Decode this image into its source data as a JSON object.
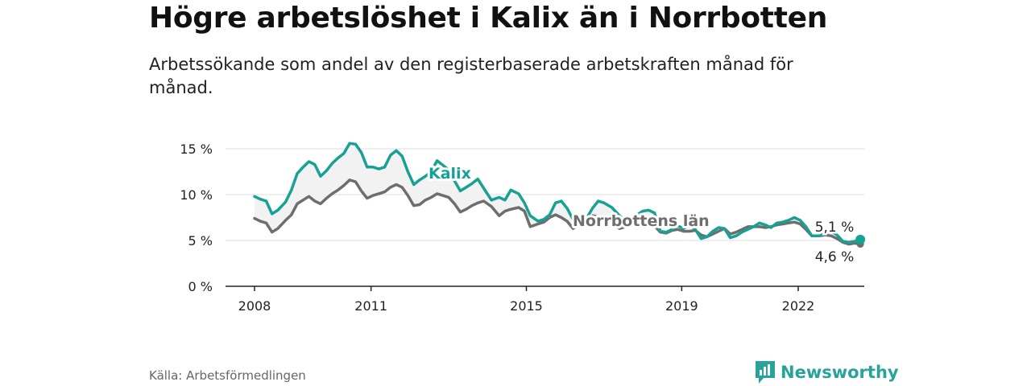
{
  "title": "Högre arbetslöshet i Kalix än i Norrbotten",
  "subtitle": "Arbetssökande som andel av den registerbaserade arbetskraften månad för månad.",
  "source": "Källa: Arbetsförmedlingen",
  "brand": {
    "name": "Newsworthy",
    "icon": "newsworthy-logo-icon"
  },
  "colors": {
    "kalix": "#17a195",
    "norrbotten": "#6e6e6e",
    "band": "#f2f2f2",
    "grid": "#dddddd",
    "axis": "#222222"
  },
  "chart_data": {
    "type": "line",
    "title": "Högre arbetslöshet i Kalix än i Norrbotten",
    "xlabel": "",
    "ylabel": "",
    "xlim": [
      2008,
      2023.8
    ],
    "ylim": [
      0,
      17
    ],
    "y_ticks": [
      0,
      5,
      10,
      15
    ],
    "y_tick_labels": [
      "0 %",
      "5 %",
      "10 %",
      "15 %"
    ],
    "x_ticks": [
      2008,
      2011,
      2015,
      2019,
      2022
    ],
    "x_tick_labels": [
      "2008",
      "2011",
      "2015",
      "2019",
      "2022"
    ],
    "grid": true,
    "series": [
      {
        "name": "Kalix",
        "label": "Kalix",
        "points": [
          [
            2008.0,
            9.8
          ],
          [
            2008.15,
            9.5
          ],
          [
            2008.3,
            9.3
          ],
          [
            2008.45,
            7.9
          ],
          [
            2008.6,
            8.3
          ],
          [
            2008.8,
            9.2
          ],
          [
            2008.95,
            10.5
          ],
          [
            2009.1,
            12.3
          ],
          [
            2009.25,
            13.0
          ],
          [
            2009.4,
            13.6
          ],
          [
            2009.55,
            13.3
          ],
          [
            2009.7,
            12.0
          ],
          [
            2009.85,
            12.6
          ],
          [
            2010.0,
            13.4
          ],
          [
            2010.15,
            14.0
          ],
          [
            2010.3,
            14.5
          ],
          [
            2010.45,
            15.6
          ],
          [
            2010.6,
            15.5
          ],
          [
            2010.75,
            14.6
          ],
          [
            2010.9,
            13.0
          ],
          [
            2011.05,
            13.0
          ],
          [
            2011.2,
            12.8
          ],
          [
            2011.35,
            13.0
          ],
          [
            2011.5,
            14.3
          ],
          [
            2011.65,
            14.8
          ],
          [
            2011.8,
            14.2
          ],
          [
            2011.95,
            12.5
          ],
          [
            2012.1,
            11.1
          ],
          [
            2012.25,
            11.6
          ],
          [
            2012.4,
            12.0
          ],
          [
            2012.55,
            12.5
          ],
          [
            2012.7,
            13.7
          ],
          [
            2012.85,
            13.2
          ],
          [
            2013.0,
            12.7
          ],
          [
            2013.15,
            11.5
          ],
          [
            2013.3,
            10.4
          ],
          [
            2013.45,
            10.8
          ],
          [
            2013.6,
            11.2
          ],
          [
            2013.75,
            11.7
          ],
          [
            2013.9,
            10.7
          ],
          [
            2014.1,
            9.4
          ],
          [
            2014.3,
            9.7
          ],
          [
            2014.45,
            9.4
          ],
          [
            2014.6,
            10.5
          ],
          [
            2014.8,
            10.1
          ],
          [
            2014.95,
            9.1
          ],
          [
            2015.1,
            7.7
          ],
          [
            2015.3,
            7.1
          ],
          [
            2015.45,
            7.3
          ],
          [
            2015.6,
            7.8
          ],
          [
            2015.75,
            9.1
          ],
          [
            2015.9,
            9.3
          ],
          [
            2016.05,
            8.5
          ],
          [
            2016.2,
            7.3
          ],
          [
            2016.35,
            7.2
          ],
          [
            2016.55,
            7.4
          ],
          [
            2016.7,
            8.5
          ],
          [
            2016.85,
            9.3
          ],
          [
            2017.0,
            9.1
          ],
          [
            2017.2,
            8.6
          ],
          [
            2017.4,
            7.7
          ],
          [
            2017.55,
            7.1
          ],
          [
            2017.7,
            7.4
          ],
          [
            2017.85,
            7.8
          ],
          [
            2018.0,
            8.2
          ],
          [
            2018.15,
            8.3
          ],
          [
            2018.3,
            8.0
          ],
          [
            2018.45,
            6.0
          ],
          [
            2018.6,
            5.9
          ],
          [
            2018.75,
            6.2
          ],
          [
            2018.9,
            6.6
          ],
          [
            2019.05,
            6.3
          ],
          [
            2019.2,
            6.7
          ],
          [
            2019.35,
            6.2
          ],
          [
            2019.5,
            5.2
          ],
          [
            2019.65,
            5.4
          ],
          [
            2019.8,
            6.0
          ],
          [
            2019.95,
            6.4
          ],
          [
            2020.1,
            6.3
          ],
          [
            2020.25,
            5.3
          ],
          [
            2020.4,
            5.5
          ],
          [
            2020.55,
            5.9
          ],
          [
            2020.7,
            6.2
          ],
          [
            2020.85,
            6.5
          ],
          [
            2021.0,
            6.9
          ],
          [
            2021.15,
            6.7
          ],
          [
            2021.3,
            6.4
          ],
          [
            2021.45,
            6.9
          ],
          [
            2021.6,
            7.0
          ],
          [
            2021.75,
            7.2
          ],
          [
            2021.9,
            7.5
          ],
          [
            2022.05,
            7.2
          ],
          [
            2022.2,
            6.5
          ],
          [
            2022.35,
            5.5
          ],
          [
            2022.55,
            5.5
          ],
          [
            2022.7,
            5.8
          ],
          [
            2022.85,
            6.0
          ],
          [
            2023.0,
            5.6
          ],
          [
            2023.15,
            4.9
          ],
          [
            2023.3,
            4.8
          ],
          [
            2023.45,
            4.9
          ],
          [
            2023.6,
            5.1
          ]
        ],
        "last_value_label": "5,1 %"
      },
      {
        "name": "Norrbottens län",
        "label": "Norrbottens län",
        "points": [
          [
            2008.0,
            7.4
          ],
          [
            2008.15,
            7.1
          ],
          [
            2008.3,
            6.9
          ],
          [
            2008.45,
            5.9
          ],
          [
            2008.6,
            6.3
          ],
          [
            2008.8,
            7.2
          ],
          [
            2008.95,
            7.8
          ],
          [
            2009.1,
            9.0
          ],
          [
            2009.25,
            9.4
          ],
          [
            2009.4,
            9.8
          ],
          [
            2009.55,
            9.3
          ],
          [
            2009.7,
            9.0
          ],
          [
            2009.85,
            9.6
          ],
          [
            2010.0,
            10.1
          ],
          [
            2010.15,
            10.5
          ],
          [
            2010.3,
            11.0
          ],
          [
            2010.45,
            11.6
          ],
          [
            2010.6,
            11.4
          ],
          [
            2010.75,
            10.4
          ],
          [
            2010.9,
            9.6
          ],
          [
            2011.05,
            9.9
          ],
          [
            2011.2,
            10.1
          ],
          [
            2011.35,
            10.3
          ],
          [
            2011.5,
            10.8
          ],
          [
            2011.65,
            11.1
          ],
          [
            2011.8,
            10.8
          ],
          [
            2011.95,
            9.9
          ],
          [
            2012.1,
            8.8
          ],
          [
            2012.25,
            8.9
          ],
          [
            2012.4,
            9.4
          ],
          [
            2012.55,
            9.7
          ],
          [
            2012.7,
            10.1
          ],
          [
            2012.85,
            9.9
          ],
          [
            2013.0,
            9.7
          ],
          [
            2013.15,
            9.0
          ],
          [
            2013.3,
            8.1
          ],
          [
            2013.45,
            8.4
          ],
          [
            2013.6,
            8.8
          ],
          [
            2013.75,
            9.1
          ],
          [
            2013.9,
            9.3
          ],
          [
            2014.1,
            8.7
          ],
          [
            2014.3,
            7.7
          ],
          [
            2014.45,
            8.2
          ],
          [
            2014.6,
            8.4
          ],
          [
            2014.8,
            8.6
          ],
          [
            2014.95,
            8.2
          ],
          [
            2015.1,
            6.5
          ],
          [
            2015.3,
            6.8
          ],
          [
            2015.45,
            7.0
          ],
          [
            2015.6,
            7.5
          ],
          [
            2015.75,
            7.8
          ],
          [
            2015.9,
            7.5
          ],
          [
            2016.05,
            7.1
          ],
          [
            2016.2,
            6.3
          ],
          [
            2016.35,
            6.8
          ],
          [
            2016.55,
            7.3
          ],
          [
            2016.7,
            7.7
          ],
          [
            2016.85,
            7.6
          ],
          [
            2017.0,
            7.3
          ],
          [
            2017.2,
            6.9
          ],
          [
            2017.4,
            6.3
          ],
          [
            2017.55,
            6.5
          ],
          [
            2017.7,
            6.9
          ],
          [
            2017.85,
            7.0
          ],
          [
            2018.0,
            7.1
          ],
          [
            2018.15,
            6.9
          ],
          [
            2018.3,
            6.6
          ],
          [
            2018.45,
            5.9
          ],
          [
            2018.6,
            5.8
          ],
          [
            2018.75,
            6.1
          ],
          [
            2018.9,
            6.2
          ],
          [
            2019.05,
            6.0
          ],
          [
            2019.2,
            6.0
          ],
          [
            2019.35,
            6.1
          ],
          [
            2019.5,
            5.6
          ],
          [
            2019.65,
            5.4
          ],
          [
            2019.8,
            5.7
          ],
          [
            2019.95,
            6.0
          ],
          [
            2020.1,
            6.3
          ],
          [
            2020.25,
            5.7
          ],
          [
            2020.4,
            5.9
          ],
          [
            2020.55,
            6.2
          ],
          [
            2020.7,
            6.5
          ],
          [
            2020.85,
            6.5
          ],
          [
            2021.0,
            6.5
          ],
          [
            2021.15,
            6.4
          ],
          [
            2021.3,
            6.5
          ],
          [
            2021.45,
            6.7
          ],
          [
            2021.6,
            6.8
          ],
          [
            2021.75,
            6.9
          ],
          [
            2021.9,
            7.0
          ],
          [
            2022.05,
            6.8
          ],
          [
            2022.2,
            6.2
          ],
          [
            2022.35,
            5.5
          ],
          [
            2022.55,
            5.5
          ],
          [
            2022.7,
            5.6
          ],
          [
            2022.85,
            5.5
          ],
          [
            2023.0,
            5.2
          ],
          [
            2023.15,
            4.8
          ],
          [
            2023.3,
            4.6
          ],
          [
            2023.45,
            4.7
          ],
          [
            2023.6,
            4.6
          ]
        ],
        "last_value_label": "4,6 %"
      }
    ]
  }
}
